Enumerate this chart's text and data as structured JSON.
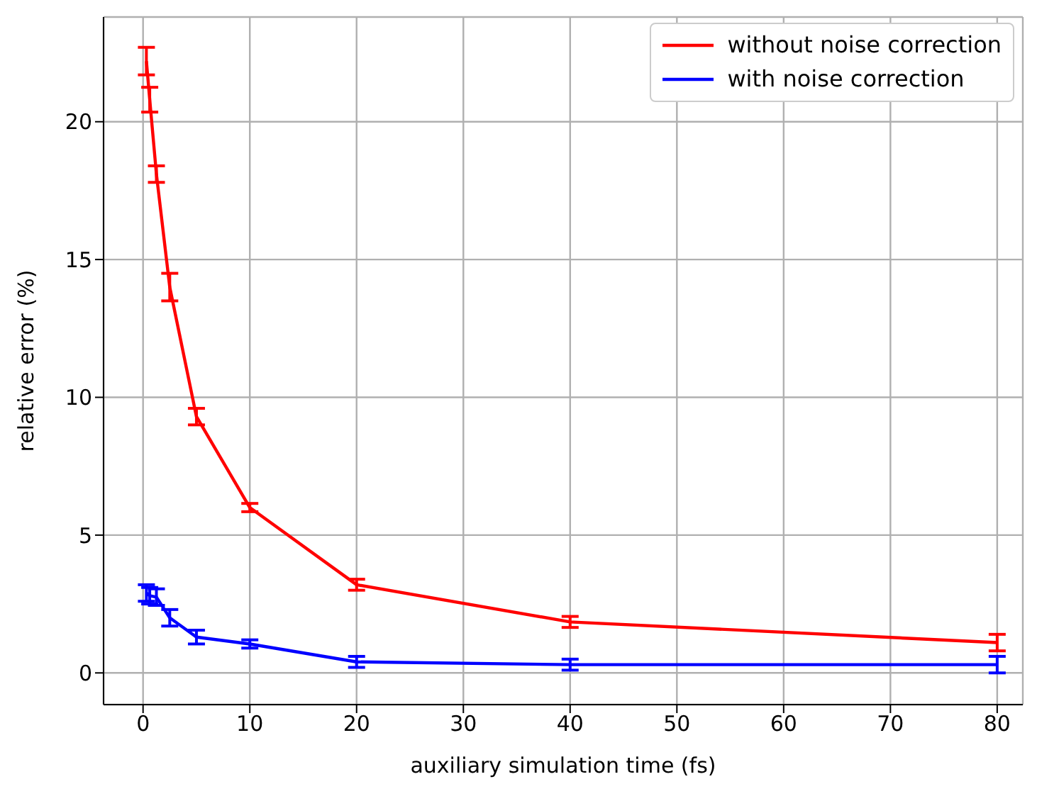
{
  "chart_data": {
    "type": "line",
    "xlabel": "auxiliary simulation time (fs)",
    "ylabel": "relative error (%)",
    "x": [
      0.3125,
      0.625,
      1.25,
      2.5,
      5,
      10,
      20,
      40,
      80
    ],
    "series": [
      {
        "name": "without noise correction",
        "color": "#ff0000",
        "values": [
          22.2,
          20.8,
          18.1,
          14.0,
          9.3,
          6.0,
          3.2,
          1.85,
          1.1
        ],
        "errors": [
          0.5,
          0.45,
          0.3,
          0.5,
          0.3,
          0.15,
          0.2,
          0.2,
          0.3
        ]
      },
      {
        "name": "with noise correction",
        "color": "#0000ff",
        "values": [
          2.9,
          2.8,
          2.75,
          2.0,
          1.3,
          1.05,
          0.4,
          0.3,
          0.3
        ],
        "errors": [
          0.3,
          0.3,
          0.3,
          0.3,
          0.25,
          0.15,
          0.2,
          0.2,
          0.3
        ]
      }
    ],
    "xlim": [
      -3.7,
      82.4
    ],
    "xticks": [
      0,
      10,
      20,
      30,
      40,
      50,
      60,
      70,
      80
    ],
    "ylim": [
      -1.15,
      23.8
    ],
    "yticks": [
      0,
      5,
      10,
      15,
      20
    ],
    "grid": true,
    "legend": "top right",
    "marker": "none",
    "line_style": "solid"
  }
}
